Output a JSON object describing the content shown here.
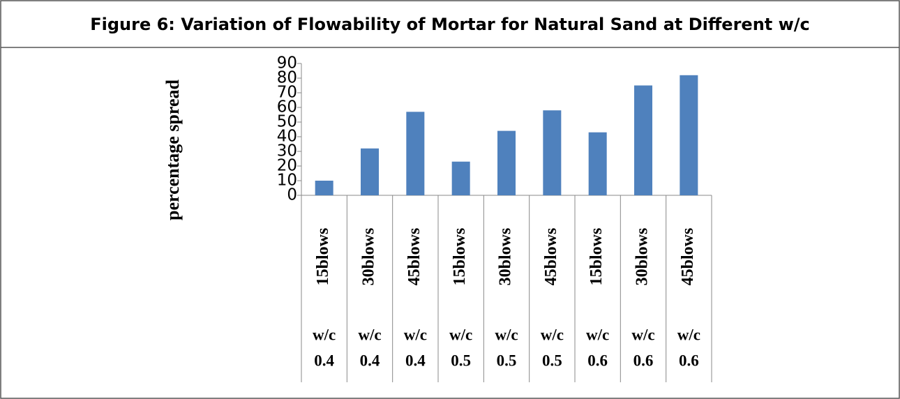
{
  "chart_data": {
    "type": "bar",
    "title": "Figure 6: Variation of Flowability of Mortar for Natural Sand at Different w/c",
    "y_label": "percentage spread",
    "categories": [
      [
        "15blows",
        "w/c",
        "0.4"
      ],
      [
        "30blows",
        "w/c",
        "0.4"
      ],
      [
        "45blows",
        "w/c",
        "0.4"
      ],
      [
        "15blows",
        "w/c",
        "0.5"
      ],
      [
        "30blows",
        "w/c",
        "0.5"
      ],
      [
        "45blows",
        "w/c",
        "0.5"
      ],
      [
        "15blows",
        "w/c",
        "0.6"
      ],
      [
        "30blows",
        "w/c",
        "0.6"
      ],
      [
        "45blows",
        "w/c",
        "0.6"
      ]
    ],
    "values": [
      10,
      32,
      57,
      23,
      44,
      58,
      43,
      75,
      82
    ],
    "color": "#4f81bd",
    "ylim": [
      0,
      90
    ],
    "yticks": [
      0,
      10,
      20,
      30,
      40,
      50,
      60,
      70,
      80,
      90
    ],
    "grid": false
  }
}
